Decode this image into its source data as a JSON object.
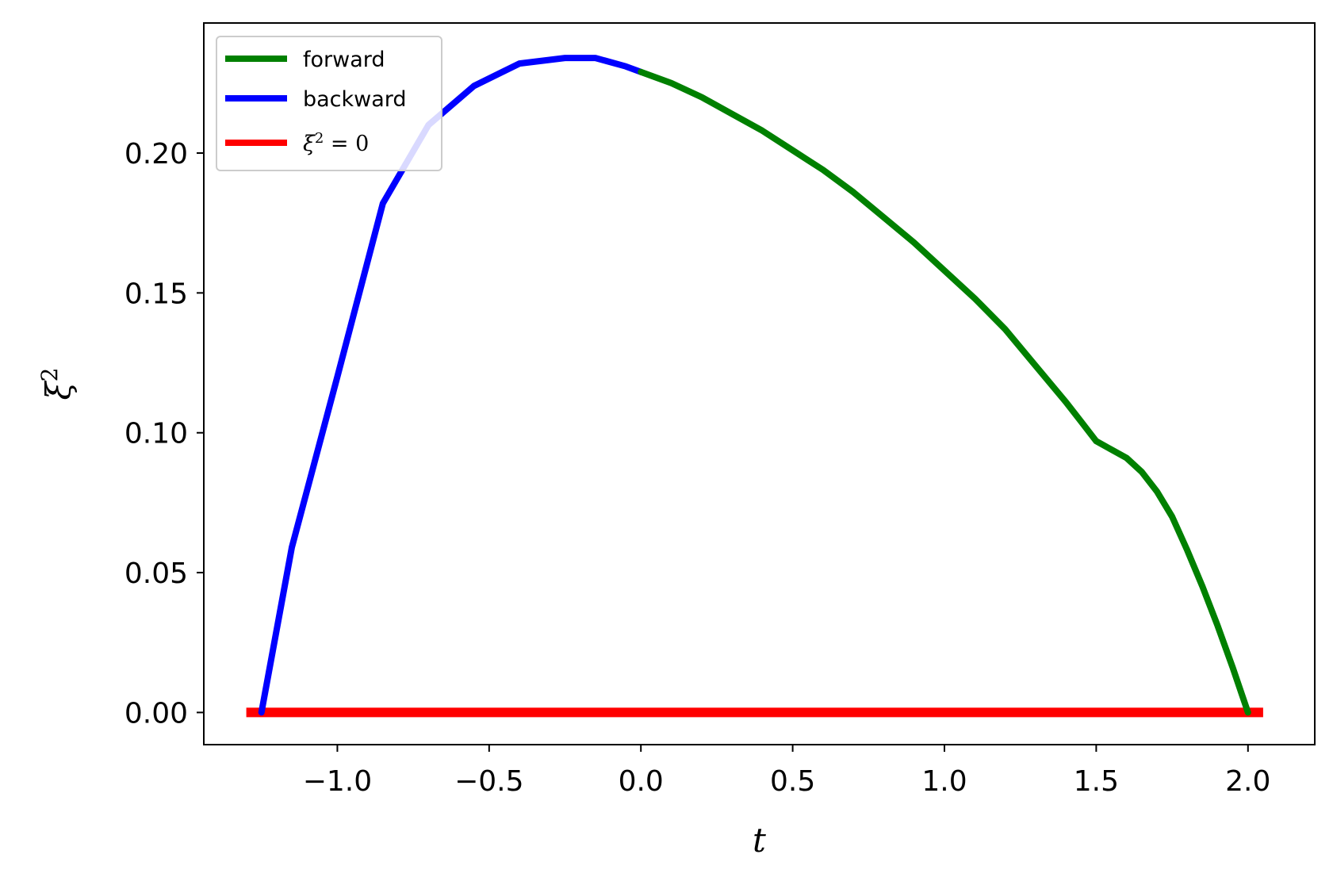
{
  "chart_data": {
    "type": "line",
    "xlabel": "t",
    "ylabel": "ξ",
    "ylabel_sup": "2",
    "xlim": [
      -1.44,
      2.22
    ],
    "ylim": [
      -0.0115,
      0.2465
    ],
    "xticks": [
      -1.0,
      -0.5,
      0.0,
      0.5,
      1.0,
      1.5,
      2.0
    ],
    "xtick_labels": [
      "−1.0",
      "−0.5",
      "0.0",
      "0.5",
      "1.0",
      "1.5",
      "2.0"
    ],
    "yticks": [
      0.0,
      0.05,
      0.1,
      0.15,
      0.2
    ],
    "ytick_labels": [
      "0.00",
      "0.05",
      "0.10",
      "0.15",
      "0.20"
    ],
    "grid": false,
    "legend_position": "upper-left",
    "legend": {
      "forward": "forward",
      "backward": "backward",
      "zero_base": "ξ",
      "zero_sup": "2",
      "zero_rest": " = 0"
    },
    "series": [
      {
        "name": "forward",
        "color": "#008000",
        "x": [
          0.0,
          0.1,
          0.2,
          0.3,
          0.4,
          0.5,
          0.6,
          0.7,
          0.8,
          0.9,
          1.0,
          1.1,
          1.2,
          1.3,
          1.4,
          1.45,
          1.5,
          1.55,
          1.6,
          1.65,
          1.7,
          1.75,
          1.8,
          1.85,
          1.9,
          1.95,
          2.0
        ],
        "y": [
          0.229,
          0.225,
          0.22,
          0.214,
          0.208,
          0.201,
          0.194,
          0.186,
          0.177,
          0.168,
          0.158,
          0.148,
          0.137,
          0.124,
          0.111,
          0.104,
          0.097,
          0.094,
          0.091,
          0.086,
          0.079,
          0.07,
          0.058,
          0.045,
          0.031,
          0.016,
          0.0
        ]
      },
      {
        "name": "backward",
        "color": "#0000ff",
        "x": [
          -1.25,
          -1.15,
          -1.0,
          -0.85,
          -0.7,
          -0.55,
          -0.4,
          -0.25,
          -0.15,
          -0.05,
          0.0
        ],
        "y": [
          0.0,
          0.059,
          0.12,
          0.182,
          0.21,
          0.224,
          0.232,
          0.234,
          0.234,
          0.231,
          0.229
        ]
      },
      {
        "name": "ξ² = 0",
        "color": "#ff0000",
        "x": [
          -1.3,
          2.05
        ],
        "y": [
          0.0,
          0.0
        ]
      }
    ]
  }
}
